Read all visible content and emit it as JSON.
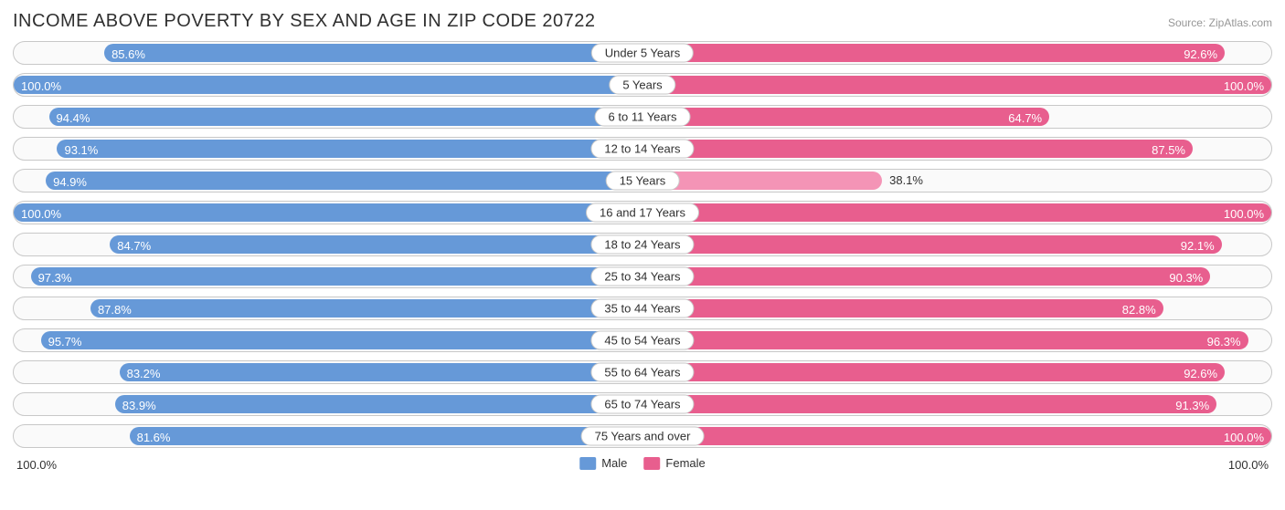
{
  "title": "INCOME ABOVE POVERTY BY SEX AND AGE IN ZIP CODE 20722",
  "source": "Source: ZipAtlas.com",
  "colors": {
    "male": "#6699d8",
    "female": "#e85e8e",
    "female_light": "#f494b6",
    "row_border": "#c8c8c8",
    "row_bg": "#fafafa",
    "text": "#303030",
    "bar_text": "#ffffff",
    "bg": "#ffffff"
  },
  "axis": {
    "left": "100.0%",
    "right": "100.0%"
  },
  "legend": {
    "male": "Male",
    "female": "Female"
  },
  "rows": [
    {
      "label": "Under 5 Years",
      "male": 85.6,
      "female": 92.6,
      "female_light": false
    },
    {
      "label": "5 Years",
      "male": 100.0,
      "female": 100.0,
      "female_light": false
    },
    {
      "label": "6 to 11 Years",
      "male": 94.4,
      "female": 64.7,
      "female_light": false
    },
    {
      "label": "12 to 14 Years",
      "male": 93.1,
      "female": 87.5,
      "female_light": false
    },
    {
      "label": "15 Years",
      "male": 94.9,
      "female": 38.1,
      "female_light": true
    },
    {
      "label": "16 and 17 Years",
      "male": 100.0,
      "female": 100.0,
      "female_light": false
    },
    {
      "label": "18 to 24 Years",
      "male": 84.7,
      "female": 92.1,
      "female_light": false
    },
    {
      "label": "25 to 34 Years",
      "male": 97.3,
      "female": 90.3,
      "female_light": false
    },
    {
      "label": "35 to 44 Years",
      "male": 87.8,
      "female": 82.8,
      "female_light": false
    },
    {
      "label": "45 to 54 Years",
      "male": 95.7,
      "female": 96.3,
      "female_light": false
    },
    {
      "label": "55 to 64 Years",
      "male": 83.2,
      "female": 92.6,
      "female_light": false
    },
    {
      "label": "65 to 74 Years",
      "male": 83.9,
      "female": 91.3,
      "female_light": false
    },
    {
      "label": "75 Years and over",
      "male": 81.6,
      "female": 100.0,
      "female_light": false
    }
  ],
  "typography": {
    "title_fontsize": 20,
    "label_fontsize": 13
  }
}
